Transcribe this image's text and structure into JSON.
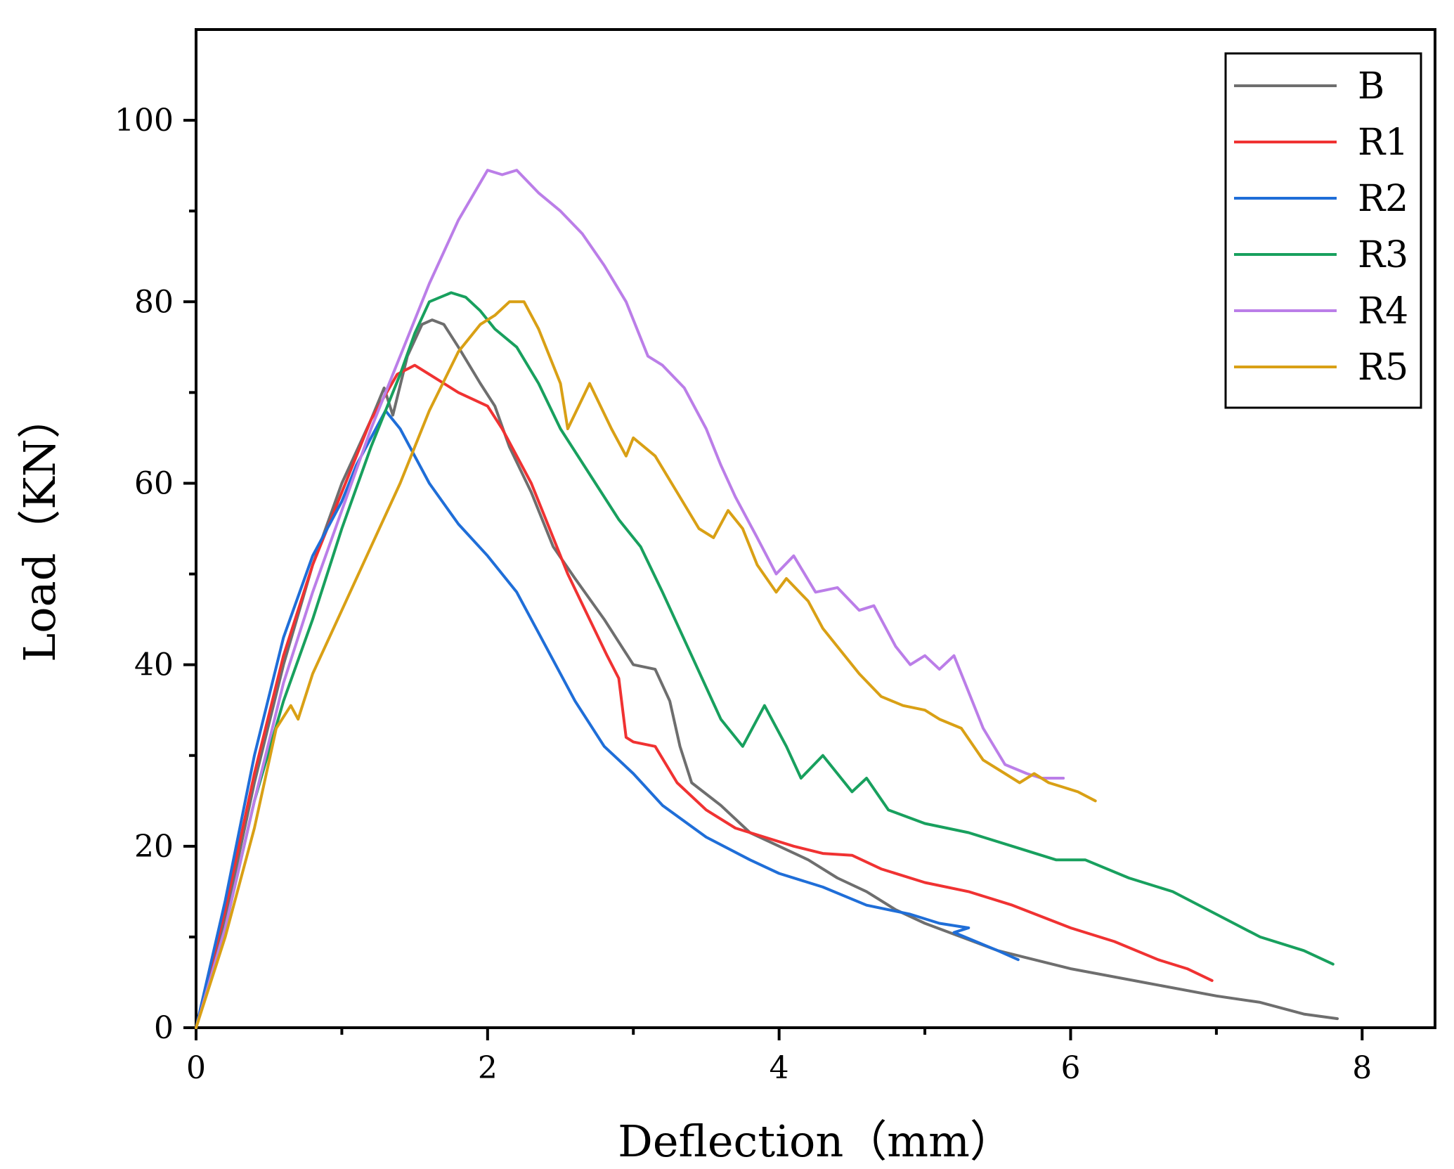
{
  "chart_data": {
    "type": "line",
    "title": "",
    "xlabel": "Deflection（mm）",
    "ylabel": "Load（KN）",
    "xlim": [
      0,
      8.5
    ],
    "ylim": [
      0,
      110
    ],
    "xticks": [
      0,
      2,
      4,
      6,
      8
    ],
    "xtick_labels": [
      "0",
      "2",
      "4",
      "6",
      "8"
    ],
    "yticks": [
      0,
      20,
      40,
      60,
      80,
      100
    ],
    "ytick_labels": [
      "0",
      "20",
      "40",
      "60",
      "80",
      "100"
    ],
    "grid": false,
    "legend_position": "top-right",
    "series": [
      {
        "name": "B",
        "color": "#6e6e6e",
        "points": [
          [
            0,
            0
          ],
          [
            0.2,
            12
          ],
          [
            0.4,
            27
          ],
          [
            0.6,
            40
          ],
          [
            0.8,
            51
          ],
          [
            1.0,
            60
          ],
          [
            1.2,
            67
          ],
          [
            1.29,
            70.5
          ],
          [
            1.35,
            67.5
          ],
          [
            1.45,
            74
          ],
          [
            1.55,
            77.5
          ],
          [
            1.62,
            78
          ],
          [
            1.7,
            77.5
          ],
          [
            1.8,
            75
          ],
          [
            1.95,
            71
          ],
          [
            2.05,
            68.5
          ],
          [
            2.15,
            64
          ],
          [
            2.3,
            59
          ],
          [
            2.45,
            53
          ],
          [
            2.6,
            49.5
          ],
          [
            2.8,
            45
          ],
          [
            3.0,
            40
          ],
          [
            3.15,
            39.5
          ],
          [
            3.25,
            36
          ],
          [
            3.32,
            31
          ],
          [
            3.4,
            27
          ],
          [
            3.6,
            24.5
          ],
          [
            3.8,
            21.5
          ],
          [
            4.0,
            20
          ],
          [
            4.2,
            18.5
          ],
          [
            4.4,
            16.5
          ],
          [
            4.6,
            15
          ],
          [
            4.8,
            13
          ],
          [
            5.0,
            11.5
          ],
          [
            5.5,
            8.5
          ],
          [
            6.0,
            6.5
          ],
          [
            6.5,
            5
          ],
          [
            7.0,
            3.5
          ],
          [
            7.3,
            2.8
          ],
          [
            7.6,
            1.5
          ],
          [
            7.83,
            1
          ]
        ]
      },
      {
        "name": "R1",
        "color": "#f03232",
        "points": [
          [
            0,
            0
          ],
          [
            0.2,
            13
          ],
          [
            0.4,
            28
          ],
          [
            0.6,
            41
          ],
          [
            0.8,
            51
          ],
          [
            1.0,
            59
          ],
          [
            1.2,
            67
          ],
          [
            1.38,
            72
          ],
          [
            1.5,
            73
          ],
          [
            1.6,
            72
          ],
          [
            1.8,
            70
          ],
          [
            2.0,
            68.5
          ],
          [
            2.1,
            66
          ],
          [
            2.2,
            63
          ],
          [
            2.3,
            60
          ],
          [
            2.4,
            56
          ],
          [
            2.55,
            50
          ],
          [
            2.7,
            45
          ],
          [
            2.82,
            41
          ],
          [
            2.9,
            38.5
          ],
          [
            2.95,
            32
          ],
          [
            3.0,
            31.5
          ],
          [
            3.15,
            31
          ],
          [
            3.3,
            27
          ],
          [
            3.5,
            24
          ],
          [
            3.7,
            22
          ],
          [
            3.9,
            21
          ],
          [
            4.1,
            20
          ],
          [
            4.3,
            19.2
          ],
          [
            4.5,
            19
          ],
          [
            4.7,
            17.5
          ],
          [
            5.0,
            16
          ],
          [
            5.3,
            15
          ],
          [
            5.6,
            13.5
          ],
          [
            6.0,
            11
          ],
          [
            6.3,
            9.5
          ],
          [
            6.6,
            7.5
          ],
          [
            6.8,
            6.5
          ],
          [
            6.97,
            5.2
          ]
        ]
      },
      {
        "name": "R2",
        "color": "#1f6ed8",
        "points": [
          [
            0,
            0
          ],
          [
            0.2,
            14
          ],
          [
            0.4,
            30
          ],
          [
            0.6,
            43
          ],
          [
            0.8,
            52
          ],
          [
            0.9,
            55
          ],
          [
            1.0,
            58
          ],
          [
            1.1,
            62
          ],
          [
            1.2,
            65
          ],
          [
            1.3,
            68
          ],
          [
            1.4,
            66
          ],
          [
            1.5,
            63
          ],
          [
            1.6,
            60
          ],
          [
            1.8,
            55.5
          ],
          [
            2.0,
            52
          ],
          [
            2.2,
            48
          ],
          [
            2.4,
            42
          ],
          [
            2.6,
            36
          ],
          [
            2.8,
            31
          ],
          [
            3.0,
            28
          ],
          [
            3.2,
            24.5
          ],
          [
            3.5,
            21
          ],
          [
            3.8,
            18.5
          ],
          [
            4.0,
            17
          ],
          [
            4.3,
            15.5
          ],
          [
            4.6,
            13.5
          ],
          [
            4.9,
            12.5
          ],
          [
            5.1,
            11.5
          ],
          [
            5.3,
            11
          ],
          [
            5.2,
            10.5
          ],
          [
            5.5,
            8.5
          ],
          [
            5.64,
            7.5
          ]
        ]
      },
      {
        "name": "R3",
        "color": "#18a05e",
        "points": [
          [
            0,
            0
          ],
          [
            0.2,
            11
          ],
          [
            0.4,
            25
          ],
          [
            0.6,
            36
          ],
          [
            0.8,
            45
          ],
          [
            1.0,
            55
          ],
          [
            1.2,
            64
          ],
          [
            1.4,
            72
          ],
          [
            1.5,
            76.5
          ],
          [
            1.6,
            80
          ],
          [
            1.75,
            81
          ],
          [
            1.85,
            80.5
          ],
          [
            1.95,
            79
          ],
          [
            2.05,
            77
          ],
          [
            2.2,
            75
          ],
          [
            2.35,
            71
          ],
          [
            2.5,
            66
          ],
          [
            2.7,
            61
          ],
          [
            2.9,
            56
          ],
          [
            3.05,
            53
          ],
          [
            3.2,
            48
          ],
          [
            3.4,
            41
          ],
          [
            3.6,
            34
          ],
          [
            3.75,
            31
          ],
          [
            3.9,
            35.5
          ],
          [
            4.05,
            31
          ],
          [
            4.15,
            27.5
          ],
          [
            4.3,
            30
          ],
          [
            4.4,
            28
          ],
          [
            4.5,
            26
          ],
          [
            4.6,
            27.5
          ],
          [
            4.75,
            24
          ],
          [
            5.0,
            22.5
          ],
          [
            5.3,
            21.5
          ],
          [
            5.6,
            20
          ],
          [
            5.9,
            18.5
          ],
          [
            6.1,
            18.5
          ],
          [
            6.4,
            16.5
          ],
          [
            6.7,
            15
          ],
          [
            7.0,
            12.5
          ],
          [
            7.3,
            10
          ],
          [
            7.6,
            8.5
          ],
          [
            7.8,
            7
          ]
        ]
      },
      {
        "name": "R4",
        "color": "#bb7ee8",
        "points": [
          [
            0,
            0
          ],
          [
            0.2,
            11
          ],
          [
            0.4,
            25
          ],
          [
            0.6,
            38
          ],
          [
            0.8,
            48
          ],
          [
            1.0,
            57
          ],
          [
            1.2,
            66
          ],
          [
            1.4,
            74
          ],
          [
            1.6,
            82
          ],
          [
            1.8,
            89
          ],
          [
            2.0,
            94.5
          ],
          [
            2.1,
            94
          ],
          [
            2.2,
            94.5
          ],
          [
            2.35,
            92
          ],
          [
            2.5,
            90
          ],
          [
            2.65,
            87.5
          ],
          [
            2.8,
            84
          ],
          [
            2.95,
            80
          ],
          [
            3.1,
            74
          ],
          [
            3.2,
            73
          ],
          [
            3.35,
            70.5
          ],
          [
            3.5,
            66
          ],
          [
            3.6,
            62
          ],
          [
            3.7,
            58.5
          ],
          [
            3.85,
            54
          ],
          [
            3.98,
            50
          ],
          [
            4.1,
            52
          ],
          [
            4.25,
            48
          ],
          [
            4.4,
            48.5
          ],
          [
            4.55,
            46
          ],
          [
            4.65,
            46.5
          ],
          [
            4.8,
            42
          ],
          [
            4.9,
            40
          ],
          [
            5.0,
            41
          ],
          [
            5.1,
            39.5
          ],
          [
            5.2,
            41
          ],
          [
            5.3,
            37
          ],
          [
            5.4,
            33
          ],
          [
            5.55,
            29
          ],
          [
            5.7,
            28
          ],
          [
            5.8,
            27.5
          ],
          [
            5.95,
            27.5
          ]
        ]
      },
      {
        "name": "R5",
        "color": "#d9a015",
        "points": [
          [
            0,
            0
          ],
          [
            0.2,
            10
          ],
          [
            0.4,
            22
          ],
          [
            0.55,
            33
          ],
          [
            0.65,
            35.5
          ],
          [
            0.7,
            34
          ],
          [
            0.8,
            39
          ],
          [
            1.0,
            46
          ],
          [
            1.2,
            53
          ],
          [
            1.4,
            60
          ],
          [
            1.6,
            68
          ],
          [
            1.8,
            74.5
          ],
          [
            1.95,
            77.5
          ],
          [
            2.05,
            78.5
          ],
          [
            2.15,
            80
          ],
          [
            2.25,
            80
          ],
          [
            2.35,
            77
          ],
          [
            2.5,
            71
          ],
          [
            2.55,
            66
          ],
          [
            2.7,
            71
          ],
          [
            2.85,
            66
          ],
          [
            2.95,
            63
          ],
          [
            3.0,
            65
          ],
          [
            3.15,
            63
          ],
          [
            3.3,
            59
          ],
          [
            3.45,
            55
          ],
          [
            3.55,
            54
          ],
          [
            3.65,
            57
          ],
          [
            3.75,
            55
          ],
          [
            3.85,
            51
          ],
          [
            3.98,
            48
          ],
          [
            4.05,
            49.5
          ],
          [
            4.2,
            47
          ],
          [
            4.3,
            44
          ],
          [
            4.45,
            41
          ],
          [
            4.55,
            39
          ],
          [
            4.7,
            36.5
          ],
          [
            4.85,
            35.5
          ],
          [
            5.0,
            35
          ],
          [
            5.1,
            34
          ],
          [
            5.25,
            33
          ],
          [
            5.4,
            29.5
          ],
          [
            5.55,
            28
          ],
          [
            5.65,
            27
          ],
          [
            5.75,
            28
          ],
          [
            5.85,
            27
          ],
          [
            5.95,
            26.5
          ],
          [
            6.05,
            26
          ],
          [
            6.17,
            25
          ]
        ]
      }
    ]
  }
}
